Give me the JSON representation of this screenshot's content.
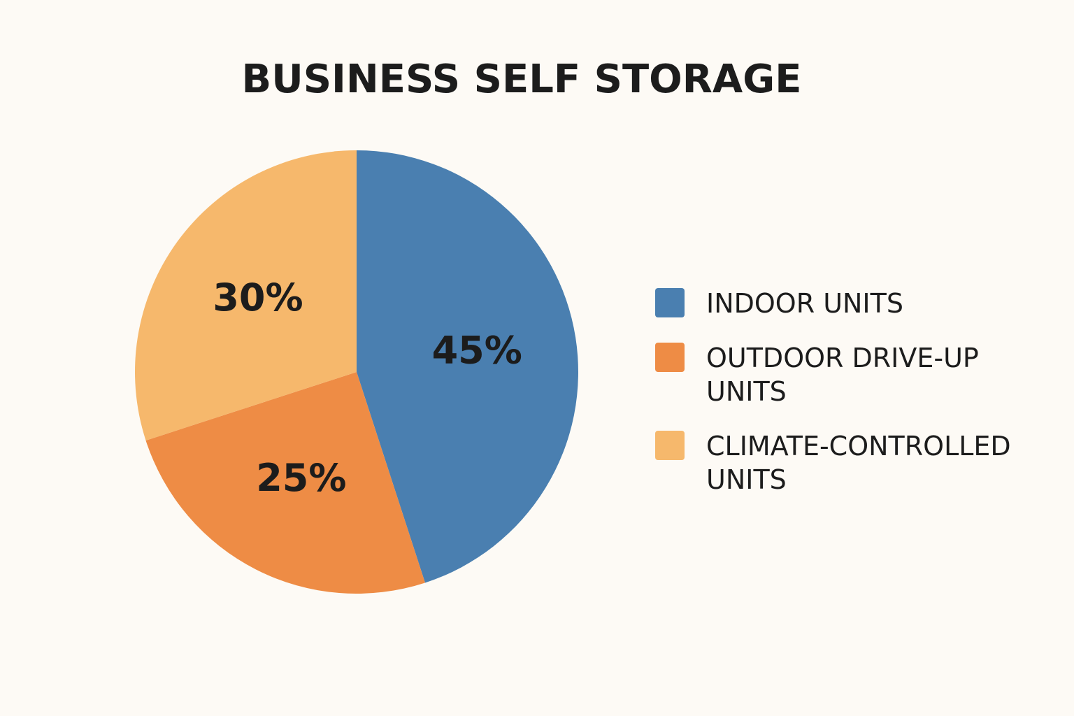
{
  "chart_data": {
    "type": "pie",
    "title": "BUSINESS SELF STORAGE",
    "categories": [
      "INDOOR UNITS",
      "OUTDOOR DRIVE-UP UNITS",
      "CLIMATE-CONTROLLED UNITS"
    ],
    "values": [
      45,
      25,
      30
    ],
    "value_labels": [
      "45%",
      "25%",
      "30%"
    ],
    "colors": [
      "#4a7fb0",
      "#ee8c45",
      "#f6b86c"
    ],
    "legend": "right"
  }
}
